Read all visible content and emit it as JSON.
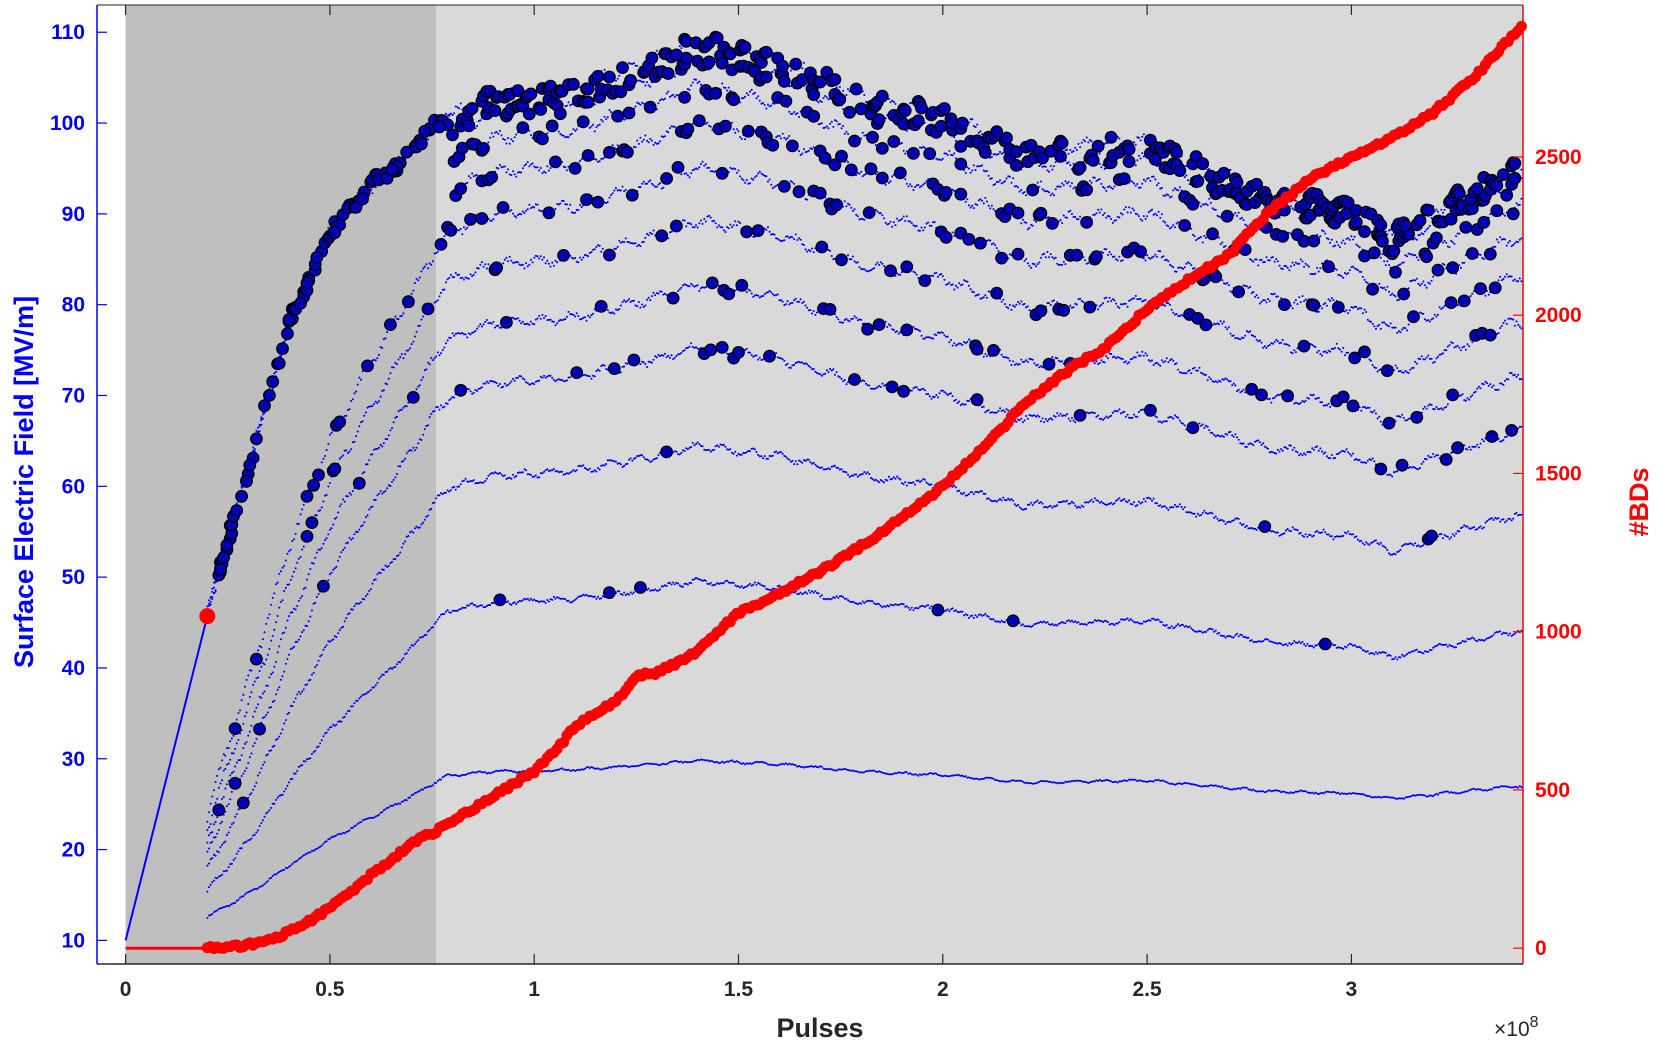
{
  "chart_data": {
    "type": "scatter",
    "title": "",
    "xlabel": "Pulses",
    "ylabel_left": "Surface Electric Field [MV/m]",
    "ylabel_right": "#BDs",
    "x_exponent_label": "×10^8",
    "x_exponent_base": "×10",
    "x_exponent_power": "8",
    "xlim": [
      -0.07,
      3.42
    ],
    "ylim_left": [
      7.4,
      113
    ],
    "ylim_right": [
      -50,
      2980
    ],
    "x_ticks": [
      0,
      0.5,
      1,
      1.5,
      2,
      2.5,
      3
    ],
    "x_tick_labels": [
      "0",
      "0.5",
      "1",
      "1.5",
      "2",
      "2.5",
      "3"
    ],
    "y_left_ticks": [
      10,
      20,
      30,
      40,
      50,
      60,
      70,
      80,
      90,
      100,
      110
    ],
    "y_left_tick_labels": [
      "10",
      "20",
      "30",
      "40",
      "50",
      "60",
      "70",
      "80",
      "90",
      "100",
      "110"
    ],
    "y_right_ticks": [
      0,
      500,
      1000,
      1500,
      2000,
      2500
    ],
    "y_right_tick_labels": [
      "0",
      "500",
      "1000",
      "1500",
      "2000",
      "2500"
    ],
    "grid": false,
    "shaded_regions": [
      {
        "x_start": 0,
        "x_end": 0.76,
        "color": "#bfbfbf"
      },
      {
        "x_start": 0.76,
        "x_end": 3.42,
        "color": "#d9d9d9"
      }
    ],
    "colors": {
      "field_series": "#0000ff",
      "breakdown_marker_fill": "#0000b4",
      "breakdown_marker_edge": "#000000",
      "bd_count_series": "#ff0000",
      "left_axis": "#0000ff",
      "right_axis": "#ff0000",
      "bottom_axis": "#262626"
    },
    "series": [
      {
        "axis": "left",
        "style": "dots",
        "field_levels_envelope": {
          "x": [
            0,
            0.1,
            0.2,
            0.3,
            0.4,
            0.5,
            0.6,
            0.7,
            0.76,
            0.9,
            1.1,
            1.3,
            1.4,
            1.6,
            1.8,
            2.0,
            2.2,
            2.5,
            2.8,
            3.0,
            3.1,
            3.4
          ],
          "y_max": [
            10,
            28,
            46,
            62,
            78,
            88,
            93,
            97,
            100,
            103,
            104,
            107,
            109,
            107,
            103,
            101,
            97,
            98,
            92,
            91,
            88,
            95
          ]
        },
        "level_fractions": [
          0.2,
          0.4,
          0.55,
          0.66,
          0.73,
          0.8,
          0.86,
          0.91,
          0.95,
          0.98,
          1.0
        ]
      },
      {
        "name": "#BDs",
        "axis": "right",
        "style": "line-markers",
        "x": [
          0,
          0.2,
          0.3,
          0.35,
          0.4,
          0.45,
          0.5,
          0.55,
          0.6,
          0.65,
          0.7,
          0.76,
          0.8,
          0.9,
          1.0,
          1.05,
          1.1,
          1.2,
          1.25,
          1.3,
          1.35,
          1.4,
          1.5,
          1.6,
          1.7,
          1.8,
          1.9,
          2.0,
          2.1,
          2.2,
          2.3,
          2.4,
          2.5,
          2.6,
          2.7,
          2.8,
          2.9,
          3.0,
          3.1,
          3.2,
          3.3,
          3.42
        ],
        "y": [
          0,
          0,
          10,
          25,
          50,
          85,
          130,
          175,
          230,
          280,
          330,
          370,
          400,
          480,
          560,
          620,
          700,
          780,
          860,
          870,
          900,
          940,
          1060,
          1120,
          1190,
          1270,
          1360,
          1460,
          1580,
          1720,
          1820,
          1900,
          2020,
          2110,
          2190,
          2330,
          2430,
          2500,
          2560,
          2640,
          2750,
          2920
        ]
      }
    ],
    "annotations": [
      {
        "type": "marker",
        "axis": "left",
        "x": 0.2,
        "y": 45.7,
        "color": "#ff0000"
      }
    ]
  }
}
